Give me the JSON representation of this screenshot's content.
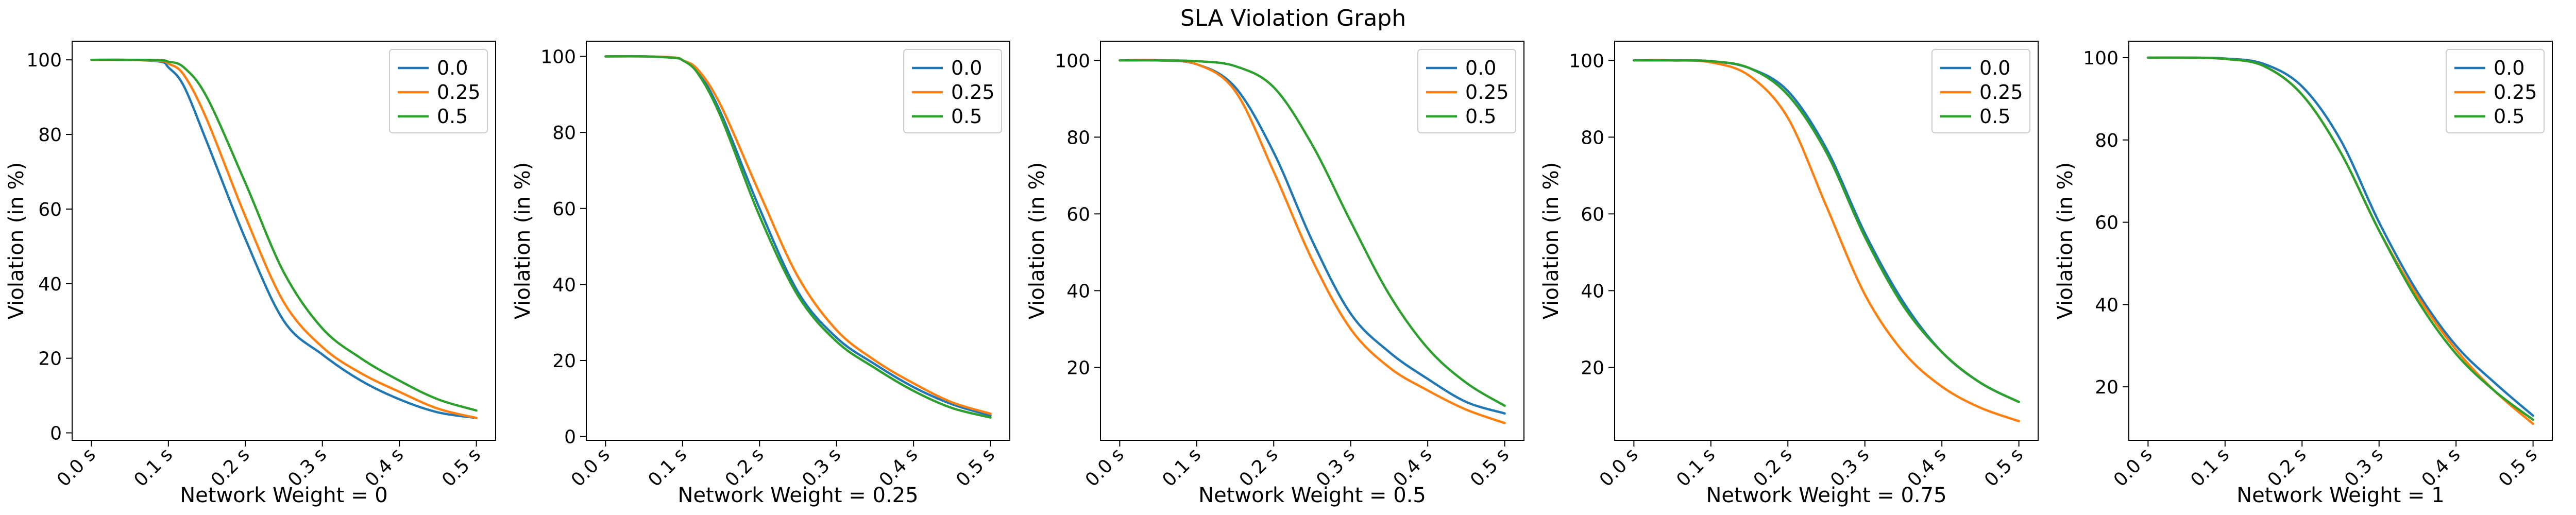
{
  "figure": {
    "title": "SLA Violation Graph"
  },
  "series_colors": [
    "#1f77b4",
    "#ff7f0e",
    "#2ca02c"
  ],
  "chart_data": [
    {
      "type": "line",
      "xlabel": "Network Weight = 0",
      "ylabel": "Violation (in %)",
      "x_ticks": [
        "0.0 s",
        "0.1 s",
        "0.2 s",
        "0.3 s",
        "0.4 s",
        "0.5 s"
      ],
      "y_ticks": [
        0,
        20,
        40,
        60,
        80,
        100
      ],
      "xlim": [
        -0.025,
        0.525
      ],
      "ylim": [
        -2,
        105
      ],
      "legend": "top-right",
      "x": [
        0,
        0.05,
        0.09,
        0.1,
        0.12,
        0.15,
        0.2,
        0.25,
        0.3,
        0.35,
        0.4,
        0.45,
        0.5
      ],
      "series": [
        {
          "name": "0.0",
          "values": [
            100,
            100,
            99.5,
            98,
            93,
            78,
            52,
            30,
            21,
            14,
            9,
            5.5,
            4
          ]
        },
        {
          "name": "0.25",
          "values": [
            100,
            100,
            99.7,
            99,
            96,
            84,
            58,
            35,
            23,
            16,
            11,
            6.5,
            4
          ]
        },
        {
          "name": "0.5",
          "values": [
            100,
            100,
            99.9,
            99.5,
            98,
            90,
            67,
            43,
            28,
            20,
            14,
            9,
            6
          ]
        }
      ]
    },
    {
      "type": "line",
      "xlabel": "Network Weight = 0.25",
      "ylabel": "Violation (in %)",
      "x_ticks": [
        "0.0 s",
        "0.1 s",
        "0.2 s",
        "0.3 s",
        "0.4 s",
        "0.5 s"
      ],
      "y_ticks": [
        0,
        20,
        40,
        60,
        80,
        100
      ],
      "xlim": [
        -0.025,
        0.525
      ],
      "ylim": [
        -1,
        104
      ],
      "legend": "top-right",
      "x": [
        0,
        0.05,
        0.09,
        0.1,
        0.12,
        0.15,
        0.2,
        0.25,
        0.3,
        0.35,
        0.4,
        0.45,
        0.5
      ],
      "series": [
        {
          "name": "0.0",
          "values": [
            100,
            100,
            99.6,
            99,
            96,
            85,
            60,
            38,
            26,
            19,
            13,
            8.5,
            5.5
          ]
        },
        {
          "name": "0.25",
          "values": [
            100,
            100,
            99.7,
            99,
            96.5,
            87,
            64,
            42,
            28,
            20,
            14,
            9,
            6
          ]
        },
        {
          "name": "0.5",
          "values": [
            100,
            100,
            99.6,
            99,
            95.5,
            84,
            58,
            37,
            25,
            18,
            12,
            7.5,
            5
          ]
        }
      ]
    },
    {
      "type": "line",
      "xlabel": "Network Weight = 0.5",
      "ylabel": "Violation (in %)",
      "x_ticks": [
        "0.0 s",
        "0.1 s",
        "0.2 s",
        "0.3 s",
        "0.4 s",
        "0.5 s"
      ],
      "y_ticks": [
        20,
        40,
        60,
        80,
        100
      ],
      "xlim": [
        -0.025,
        0.525
      ],
      "ylim": [
        1,
        105
      ],
      "legend": "top-right",
      "x": [
        0,
        0.05,
        0.1,
        0.15,
        0.2,
        0.25,
        0.3,
        0.35,
        0.4,
        0.45,
        0.5
      ],
      "series": [
        {
          "name": "0.0",
          "values": [
            100,
            100,
            99,
            93,
            76,
            53,
            34,
            24,
            17,
            11,
            8
          ]
        },
        {
          "name": "0.25",
          "values": [
            100,
            100,
            99,
            92,
            71,
            48,
            30,
            20,
            14,
            9,
            5.5
          ]
        },
        {
          "name": "0.5",
          "values": [
            100,
            100,
            99.8,
            98.5,
            93,
            78,
            58,
            39,
            25,
            16,
            10
          ]
        }
      ]
    },
    {
      "type": "line",
      "xlabel": "Network Weight = 0.75",
      "ylabel": "Violation (in %)",
      "x_ticks": [
        "0.0 s",
        "0.1 s",
        "0.2 s",
        "0.3 s",
        "0.4 s",
        "0.5 s"
      ],
      "y_ticks": [
        20,
        40,
        60,
        80,
        100
      ],
      "xlim": [
        -0.025,
        0.525
      ],
      "ylim": [
        1,
        105
      ],
      "legend": "top-right",
      "x": [
        0,
        0.05,
        0.1,
        0.15,
        0.2,
        0.25,
        0.3,
        0.35,
        0.4,
        0.45,
        0.5
      ],
      "series": [
        {
          "name": "0.0",
          "values": [
            100,
            100,
            99.8,
            98,
            92,
            77,
            55,
            37,
            24,
            16,
            11
          ]
        },
        {
          "name": "0.25",
          "values": [
            100,
            100,
            99.5,
            96,
            85,
            62,
            39,
            24,
            15,
            9.5,
            6
          ]
        },
        {
          "name": "0.5",
          "values": [
            100,
            100,
            99.8,
            98,
            91,
            76,
            54,
            36,
            24,
            16,
            11
          ]
        }
      ]
    },
    {
      "type": "line",
      "xlabel": "Network Weight = 1",
      "ylabel": "Violation (in %)",
      "x_ticks": [
        "0.0 s",
        "0.1 s",
        "0.2 s",
        "0.3 s",
        "0.4 s",
        "0.5 s"
      ],
      "y_ticks": [
        20,
        40,
        60,
        80,
        100
      ],
      "xlim": [
        -0.025,
        0.525
      ],
      "ylim": [
        7,
        104
      ],
      "legend": "top-right",
      "x": [
        0,
        0.05,
        0.1,
        0.15,
        0.2,
        0.25,
        0.3,
        0.35,
        0.4,
        0.45,
        0.5
      ],
      "series": [
        {
          "name": "0.0",
          "values": [
            100,
            100,
            99.8,
            98.5,
            93,
            80,
            60,
            43,
            30,
            21,
            13
          ]
        },
        {
          "name": "0.25",
          "values": [
            100,
            100,
            99.7,
            98,
            91,
            77,
            58,
            42,
            29,
            19,
            11
          ]
        },
        {
          "name": "0.5",
          "values": [
            100,
            100,
            99.7,
            98,
            91,
            77,
            58,
            41,
            28,
            19,
            12
          ]
        }
      ]
    }
  ]
}
